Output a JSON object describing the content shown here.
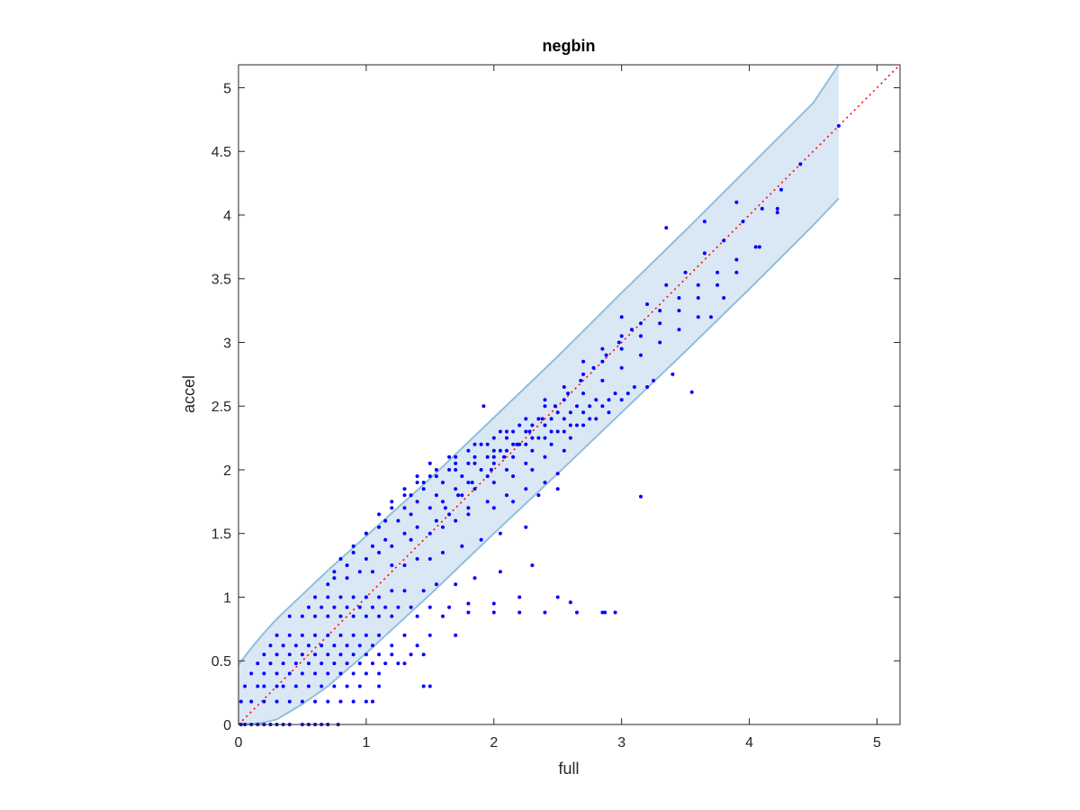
{
  "chart_data": {
    "type": "scatter",
    "title": "negbin",
    "xlabel": "full",
    "ylabel": "accel",
    "xlim": [
      0,
      5.18
    ],
    "ylim": [
      0,
      5.18
    ],
    "x_ticks": [
      0,
      1,
      2,
      3,
      4,
      5
    ],
    "x_tick_labels": [
      "0",
      "1",
      "2",
      "3",
      "4",
      "5"
    ],
    "y_ticks": [
      0,
      0.5,
      1,
      1.5,
      2,
      2.5,
      3,
      3.5,
      4,
      4.5,
      5
    ],
    "y_tick_labels": [
      "0",
      "0.5",
      "1",
      "1.5",
      "2",
      "2.5",
      "3",
      "3.5",
      "4",
      "4.5",
      "5"
    ],
    "grid": false,
    "colors": {
      "points": "#0000ff",
      "reference_line": "#ff0000",
      "band_fill": "#d9e8f4",
      "band_edge": "#8fbfdd"
    },
    "reference_line": {
      "style": "dotted",
      "x": [
        0,
        5.18
      ],
      "y": [
        0,
        5.18
      ]
    },
    "confidence_band": {
      "x": [
        0,
        0.1,
        0.2,
        0.3,
        0.5,
        0.7,
        1.0,
        1.5,
        2.0,
        2.5,
        3.0,
        3.5,
        4.0,
        4.5,
        4.7
      ],
      "upper": [
        0.47,
        0.6,
        0.72,
        0.83,
        1.02,
        1.21,
        1.48,
        1.93,
        2.41,
        2.89,
        3.39,
        3.88,
        4.38,
        4.88,
        5.18
      ],
      "lower": [
        0,
        0.004,
        0.016,
        0.04,
        0.16,
        0.3,
        0.56,
        1.02,
        1.5,
        1.97,
        2.45,
        2.93,
        3.42,
        3.92,
        4.13
      ]
    },
    "points": {
      "x": [
        0.02,
        0.05,
        0.1,
        0.15,
        0.2,
        0.25,
        0.3,
        0.35,
        0.4,
        0.5,
        0.55,
        0.6,
        0.65,
        0.7,
        0.78,
        0.02,
        0.1,
        0.2,
        0.3,
        0.4,
        0.5,
        0.6,
        0.7,
        0.8,
        0.9,
        1.0,
        1.05,
        0.05,
        0.15,
        0.2,
        0.3,
        0.35,
        0.45,
        0.55,
        0.65,
        0.75,
        0.85,
        0.95,
        1.1,
        1.5,
        0.1,
        0.2,
        0.3,
        0.4,
        0.5,
        0.6,
        0.7,
        0.8,
        0.9,
        1.0,
        1.1,
        0.15,
        0.25,
        0.35,
        0.45,
        0.55,
        0.65,
        0.75,
        0.85,
        0.95,
        1.05,
        1.15,
        1.25,
        1.3,
        0.2,
        0.3,
        0.4,
        0.5,
        0.6,
        0.7,
        0.8,
        0.9,
        1.0,
        1.1,
        1.2,
        1.35,
        1.45,
        0.25,
        0.35,
        0.45,
        0.55,
        0.65,
        0.75,
        0.85,
        0.95,
        1.05,
        1.2,
        1.4,
        0.3,
        0.4,
        0.5,
        0.6,
        0.7,
        0.8,
        0.9,
        1.0,
        1.1,
        1.3,
        1.5,
        1.7,
        0.4,
        0.5,
        0.6,
        0.7,
        0.8,
        0.9,
        1.0,
        1.1,
        1.2,
        1.4,
        1.6,
        1.8,
        2.0,
        2.2,
        2.4,
        2.65,
        2.85,
        2.95,
        0.55,
        0.65,
        0.75,
        0.85,
        0.95,
        1.05,
        1.15,
        1.25,
        1.35,
        1.5,
        1.65,
        1.8,
        2.0,
        2.2,
        2.5,
        0.6,
        0.7,
        0.8,
        0.9,
        1.0,
        1.1,
        1.2,
        1.3,
        1.45,
        1.55,
        1.7,
        1.85,
        2.05,
        2.3,
        0.7,
        0.75,
        0.85,
        0.95,
        1.05,
        1.2,
        1.3,
        1.4,
        1.5,
        1.6,
        1.75,
        1.9,
        2.05,
        2.25,
        0.75,
        0.85,
        1.0,
        1.1,
        1.2,
        1.35,
        1.5,
        1.6,
        1.7,
        1.8,
        2.0,
        2.15,
        2.35,
        2.5,
        0.8,
        0.9,
        1.05,
        1.15,
        1.3,
        1.4,
        1.55,
        1.65,
        1.8,
        1.95,
        2.1,
        2.25,
        2.4,
        0.9,
        1.0,
        1.1,
        1.25,
        1.35,
        1.5,
        1.6,
        1.75,
        1.85,
        2.0,
        2.15,
        2.3,
        1.0,
        1.15,
        1.3,
        1.4,
        1.55,
        1.7,
        1.8,
        1.95,
        2.1,
        2.25,
        2.4,
        2.55,
        1.1,
        1.2,
        1.35,
        1.45,
        1.6,
        1.75,
        1.9,
        2.0,
        2.15,
        2.3,
        2.45,
        2.6,
        1.2,
        1.3,
        1.45,
        1.55,
        1.7,
        1.85,
        2.0,
        2.1,
        2.25,
        2.4,
        2.55,
        2.7,
        1.3,
        1.4,
        1.5,
        1.65,
        1.8,
        1.95,
        2.05,
        2.2,
        2.35,
        2.5,
        2.65,
        2.8,
        1.4,
        1.55,
        1.7,
        1.85,
        2.0,
        2.15,
        2.3,
        2.45,
        2.6,
        2.75,
        2.9,
        1.5,
        1.65,
        1.8,
        1.95,
        2.1,
        2.25,
        2.4,
        2.55,
        2.7,
        2.85,
        3.0,
        1.7,
        1.85,
        2.0,
        2.15,
        2.3,
        2.45,
        2.6,
        2.75,
        2.9,
        3.05,
        3.2,
        1.9,
        2.05,
        2.2,
        2.35,
        2.5,
        2.65,
        2.8,
        2.95,
        3.1,
        3.25,
        3.4,
        2.1,
        2.25,
        2.4,
        2.55,
        2.7,
        2.85,
        3.0,
        3.15,
        3.3,
        3.45,
        3.6,
        2.4,
        2.55,
        2.7,
        2.85,
        3.0,
        3.15,
        3.3,
        3.45,
        3.6,
        3.75,
        3.9,
        2.7,
        2.85,
        3.0,
        3.15,
        3.3,
        3.45,
        3.6,
        3.75,
        3.9,
        4.05,
        3.0,
        3.2,
        3.35,
        3.5,
        3.65,
        3.8,
        3.95,
        4.1,
        4.25,
        4.4,
        4.7,
        1.92,
        3.35,
        3.55,
        3.15,
        2.87,
        1.45,
        2.6,
        2.5,
        3.7,
        3.8,
        4.22,
        4.22,
        4.08,
        3.65,
        3.9,
        1.62,
        1.72,
        1.83,
        1.98,
        2.08,
        2.18,
        2.28,
        2.38,
        2.48,
        2.58,
        2.68,
        2.78,
        2.88,
        2.98,
        3.08
      ],
      "y": [
        0,
        0,
        0,
        0,
        0,
        0,
        0,
        0,
        0,
        0,
        0,
        0,
        0,
        0,
        0,
        0.18,
        0.18,
        0.18,
        0.18,
        0.18,
        0.18,
        0.18,
        0.18,
        0.18,
        0.18,
        0.18,
        0.18,
        0.3,
        0.3,
        0.3,
        0.3,
        0.3,
        0.3,
        0.3,
        0.3,
        0.3,
        0.3,
        0.3,
        0.3,
        0.3,
        0.4,
        0.4,
        0.4,
        0.4,
        0.4,
        0.4,
        0.4,
        0.4,
        0.4,
        0.4,
        0.4,
        0.48,
        0.48,
        0.48,
        0.48,
        0.48,
        0.48,
        0.48,
        0.48,
        0.48,
        0.48,
        0.48,
        0.48,
        0.48,
        0.55,
        0.55,
        0.55,
        0.55,
        0.55,
        0.55,
        0.55,
        0.55,
        0.55,
        0.55,
        0.55,
        0.55,
        0.55,
        0.62,
        0.62,
        0.62,
        0.62,
        0.62,
        0.62,
        0.62,
        0.62,
        0.62,
        0.62,
        0.62,
        0.7,
        0.7,
        0.7,
        0.7,
        0.7,
        0.7,
        0.7,
        0.7,
        0.7,
        0.7,
        0.7,
        0.7,
        0.85,
        0.85,
        0.85,
        0.85,
        0.85,
        0.85,
        0.85,
        0.85,
        0.85,
        0.85,
        0.85,
        0.88,
        0.88,
        0.88,
        0.88,
        0.88,
        0.88,
        0.88,
        0.92,
        0.92,
        0.92,
        0.92,
        0.92,
        0.92,
        0.92,
        0.92,
        0.92,
        0.92,
        0.92,
        0.95,
        0.95,
        1.0,
        1.0,
        1.0,
        1.0,
        1.0,
        1.0,
        1.0,
        1.0,
        1.05,
        1.05,
        1.05,
        1.1,
        1.1,
        1.15,
        1.2,
        1.25,
        1.1,
        1.15,
        1.15,
        1.2,
        1.2,
        1.25,
        1.25,
        1.3,
        1.3,
        1.35,
        1.4,
        1.45,
        1.5,
        1.55,
        1.2,
        1.25,
        1.3,
        1.35,
        1.4,
        1.45,
        1.5,
        1.55,
        1.6,
        1.65,
        1.7,
        1.75,
        1.8,
        1.85,
        1.3,
        1.35,
        1.4,
        1.45,
        1.5,
        1.55,
        1.6,
        1.65,
        1.7,
        1.75,
        1.8,
        1.85,
        1.9,
        1.4,
        1.5,
        1.55,
        1.6,
        1.65,
        1.7,
        1.75,
        1.8,
        1.85,
        1.9,
        1.95,
        2.0,
        1.5,
        1.6,
        1.7,
        1.75,
        1.8,
        1.85,
        1.9,
        1.95,
        2.0,
        2.05,
        2.1,
        2.15,
        1.65,
        1.7,
        1.8,
        1.85,
        1.9,
        1.95,
        2.0,
        2.05,
        2.1,
        2.15,
        2.2,
        2.25,
        1.75,
        1.8,
        1.9,
        1.95,
        2.0,
        2.05,
        2.1,
        2.15,
        2.2,
        2.25,
        2.3,
        2.35,
        1.85,
        1.9,
        1.95,
        2.0,
        2.05,
        2.1,
        2.15,
        2.2,
        2.25,
        2.3,
        2.35,
        2.4,
        1.95,
        2.0,
        2.05,
        2.1,
        2.15,
        2.2,
        2.25,
        2.3,
        2.35,
        2.4,
        2.45,
        2.05,
        2.1,
        2.15,
        2.2,
        2.25,
        2.3,
        2.35,
        2.4,
        2.45,
        2.5,
        2.55,
        2.1,
        2.2,
        2.25,
        2.3,
        2.35,
        2.4,
        2.45,
        2.5,
        2.55,
        2.6,
        2.65,
        2.2,
        2.3,
        2.35,
        2.4,
        2.45,
        2.5,
        2.55,
        2.6,
        2.65,
        2.7,
        2.75,
        2.3,
        2.4,
        2.5,
        2.55,
        2.6,
        2.7,
        2.8,
        2.9,
        3.0,
        3.1,
        3.2,
        2.55,
        2.65,
        2.75,
        2.85,
        2.95,
        3.05,
        3.15,
        3.25,
        3.35,
        3.45,
        3.55,
        2.85,
        2.95,
        3.05,
        3.15,
        3.25,
        3.35,
        3.45,
        3.55,
        3.65,
        3.75,
        3.2,
        3.3,
        3.45,
        3.55,
        3.7,
        3.8,
        3.95,
        4.05,
        4.2,
        4.4,
        4.7,
        2.5,
        3.9,
        2.61,
        1.79,
        0.88,
        0.3,
        0.96,
        1.97,
        3.2,
        3.35,
        4.02,
        4.05,
        3.75,
        3.95,
        4.1,
        1.7,
        1.8,
        1.9,
        2.0,
        2.1,
        2.2,
        2.3,
        2.4,
        2.5,
        2.6,
        2.7,
        2.8,
        2.9,
        3.0,
        3.1
      ]
    }
  }
}
